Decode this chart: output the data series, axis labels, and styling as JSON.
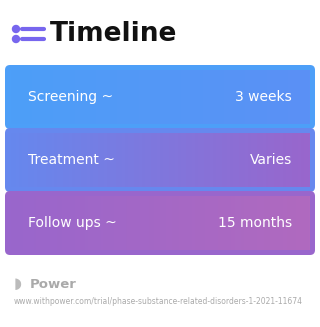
{
  "title": "Timeline",
  "background_color": "#ffffff",
  "rows": [
    {
      "label": "Screening ~",
      "value": "3 weeks",
      "color_left": "#4d9ff8",
      "color_right": "#5b90f5"
    },
    {
      "label": "Treatment ~",
      "value": "Varies",
      "color_left": "#6688ee",
      "color_right": "#9966cc"
    },
    {
      "label": "Follow ups ~",
      "value": "15 months",
      "color_left": "#9966cc",
      "color_right": "#b06abf"
    }
  ],
  "footer_logo_text": "Power",
  "footer_url": "www.withpower.com/trial/phase-substance-related-disorders-1-2021-11674",
  "icon_color": "#7766ee",
  "title_fontsize": 19,
  "label_fontsize": 10,
  "value_fontsize": 10,
  "footer_fontsize": 5.5
}
